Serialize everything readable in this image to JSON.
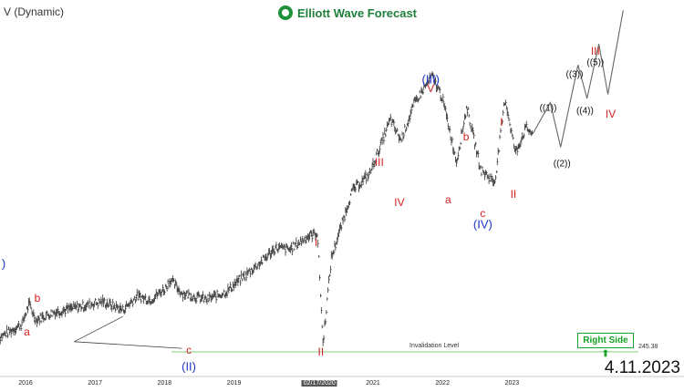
{
  "header": {
    "title": "V (Dynamic)",
    "brand": "Elliott Wave Forecast",
    "date": "4.11.2023",
    "right_side": "Right Side ⬆"
  },
  "invalidation": {
    "label": "Invalidation Level",
    "value": "245.38"
  },
  "chart_data": {
    "type": "line",
    "xlabel": "",
    "ylabel": "",
    "x_ticks": [
      "2016",
      "2017",
      "2018",
      "2019",
      "02/17/2020",
      "2021",
      "2022",
      "2023"
    ],
    "highlighted_tick": "02/17/2020",
    "invalidation_level": 245.38,
    "series": [
      {
        "style": "ohlc-bars",
        "points": [
          {
            "x": 2015.6,
            "y": 14
          },
          {
            "x": 2015.95,
            "y": 31
          },
          {
            "x": 2016.05,
            "y": 55
          },
          {
            "x": 2016.15,
            "y": 36
          },
          {
            "x": 2016.4,
            "y": 45
          },
          {
            "x": 2016.8,
            "y": 52
          },
          {
            "x": 2017.1,
            "y": 58
          },
          {
            "x": 2017.4,
            "y": 48
          },
          {
            "x": 2017.6,
            "y": 64
          },
          {
            "x": 2017.8,
            "y": 60
          },
          {
            "x": 2018.0,
            "y": 73
          },
          {
            "x": 2018.08,
            "y": 84
          },
          {
            "x": 2018.25,
            "y": 68
          },
          {
            "x": 2018.6,
            "y": 60
          },
          {
            "x": 2018.9,
            "y": 70
          },
          {
            "x": 2019.0,
            "y": 78
          },
          {
            "x": 2019.4,
            "y": 106
          },
          {
            "x": 2019.6,
            "y": 122
          },
          {
            "x": 2019.8,
            "y": 120
          },
          {
            "x": 2020.05,
            "y": 135
          },
          {
            "x": 2020.2,
            "y": 140
          },
          {
            "x": 2020.28,
            "y": 8
          },
          {
            "x": 2020.4,
            "y": 110
          },
          {
            "x": 2020.7,
            "y": 190
          },
          {
            "x": 2020.95,
            "y": 210
          },
          {
            "x": 2021.25,
            "y": 275
          },
          {
            "x": 2021.4,
            "y": 250
          },
          {
            "x": 2021.6,
            "y": 295
          },
          {
            "x": 2021.85,
            "y": 327
          },
          {
            "x": 2022.0,
            "y": 300
          },
          {
            "x": 2022.2,
            "y": 225
          },
          {
            "x": 2022.35,
            "y": 290
          },
          {
            "x": 2022.55,
            "y": 215
          },
          {
            "x": 2022.75,
            "y": 200
          },
          {
            "x": 2022.9,
            "y": 300
          },
          {
            "x": 2023.05,
            "y": 235
          },
          {
            "x": 2023.2,
            "y": 265
          },
          {
            "x": 2023.3,
            "y": 258
          }
        ]
      },
      {
        "style": "projection",
        "points": [
          {
            "x": 2023.3,
            "y": 258
          },
          {
            "x": 2023.55,
            "y": 295
          },
          {
            "x": 2023.7,
            "y": 242
          },
          {
            "x": 2023.95,
            "y": 340
          },
          {
            "x": 2024.08,
            "y": 300
          },
          {
            "x": 2024.25,
            "y": 365
          },
          {
            "x": 2024.38,
            "y": 305
          },
          {
            "x": 2024.6,
            "y": 405
          }
        ]
      }
    ],
    "wedge": [
      {
        "from": {
          "x": 2016.7,
          "y": 10
        },
        "to": {
          "x": 2017.4,
          "y": 40
        }
      },
      {
        "from": {
          "x": 2016.7,
          "y": 10
        },
        "to": {
          "x": 2018.25,
          "y": 2
        }
      }
    ],
    "labels": [
      {
        "text": ")",
        "x": 2015.57,
        "y": 103,
        "color": "blue"
      },
      {
        "text": "b",
        "x": 2016.17,
        "y": 62,
        "color": "red"
      },
      {
        "text": "a",
        "x": 2016.02,
        "y": 22,
        "color": "red"
      },
      {
        "text": "c",
        "x": 2018.35,
        "y": 0,
        "color": "red"
      },
      {
        "text": "(II)",
        "x": 2018.35,
        "y": -20,
        "color": "blue"
      },
      {
        "text": "I",
        "x": 2020.18,
        "y": 128,
        "color": "red"
      },
      {
        "text": "II",
        "x": 2020.25,
        "y": -2,
        "color": "red"
      },
      {
        "text": "III",
        "x": 2021.09,
        "y": 224,
        "color": "red"
      },
      {
        "text": "IV",
        "x": 2021.38,
        "y": 176,
        "color": "red"
      },
      {
        "text": "V",
        "x": 2021.83,
        "y": 312,
        "color": "red"
      },
      {
        "text": "(III)",
        "x": 2021.83,
        "y": 323,
        "color": "blue"
      },
      {
        "text": "a",
        "x": 2022.08,
        "y": 179,
        "color": "red"
      },
      {
        "text": "b",
        "x": 2022.34,
        "y": 254,
        "color": "red"
      },
      {
        "text": "c",
        "x": 2022.58,
        "y": 163,
        "color": "red"
      },
      {
        "text": "(IV)",
        "x": 2022.58,
        "y": 150,
        "color": "blue"
      },
      {
        "text": "I",
        "x": 2022.85,
        "y": 272,
        "color": "red"
      },
      {
        "text": "II",
        "x": 2023.02,
        "y": 186,
        "color": "red"
      },
      {
        "text": "((1))",
        "x": 2023.52,
        "y": 288,
        "color": "black"
      },
      {
        "text": "((2))",
        "x": 2023.72,
        "y": 222,
        "color": "black"
      },
      {
        "text": "((3))",
        "x": 2023.9,
        "y": 328,
        "color": "black"
      },
      {
        "text": "((4))",
        "x": 2024.05,
        "y": 285,
        "color": "black"
      },
      {
        "text": "((5))",
        "x": 2024.2,
        "y": 342,
        "color": "black"
      },
      {
        "text": "III",
        "x": 2024.2,
        "y": 356,
        "color": "red"
      },
      {
        "text": "IV",
        "x": 2024.42,
        "y": 282,
        "color": "red"
      }
    ],
    "grid": false,
    "legend": "none"
  },
  "colors": {
    "bars": "#333333",
    "projection": "#666666",
    "invalidation_line": "#7ed67e",
    "blue_labels": "#1a36c9",
    "red_labels": "#d61f1f",
    "brand": "#1e7f3a"
  },
  "icons": {
    "logo": "ewf-logo-icon",
    "arrow": "up-arrow-icon"
  }
}
